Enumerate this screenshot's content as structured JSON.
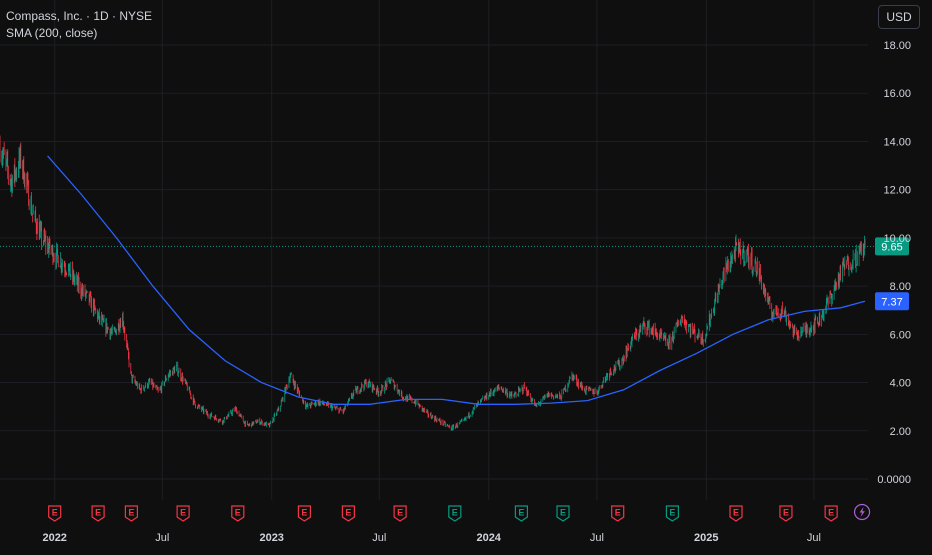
{
  "header": {
    "title": "Compass, Inc. · 1D · NYSE",
    "indicator": "SMA (200, close)",
    "currency": "USD"
  },
  "colors": {
    "background": "#0f0f0f",
    "grid": "#1d1f24",
    "up": "#089981",
    "down": "#f23645",
    "sma": "#2962ff",
    "text": "#d1d4dc",
    "flash": "#b05fd6"
  },
  "price_labels": {
    "last": "9.65",
    "sma": "7.37"
  },
  "chart_data": {
    "type": "candlestick",
    "title": "Compass, Inc. · 1D · NYSE",
    "x_range": [
      "2021-10-01",
      "2025-09-30"
    ],
    "ylim": [
      0,
      18
    ],
    "y_ticks": [
      "18.00",
      "16.00",
      "14.00",
      "12.00",
      "10.00",
      "8.00",
      "6.00",
      "4.00",
      "2.00",
      "0.0000"
    ],
    "x_ticks": [
      {
        "label": "2022",
        "date": "2022-01-01",
        "bold": true
      },
      {
        "label": "Jul",
        "date": "2022-07-01",
        "bold": false
      },
      {
        "label": "2023",
        "date": "2023-01-01",
        "bold": true
      },
      {
        "label": "Jul",
        "date": "2023-07-01",
        "bold": false
      },
      {
        "label": "2024",
        "date": "2024-01-01",
        "bold": true
      },
      {
        "label": "Jul",
        "date": "2024-07-01",
        "bold": false
      },
      {
        "label": "2025",
        "date": "2025-01-01",
        "bold": true
      },
      {
        "label": "Jul",
        "date": "2025-07-01",
        "bold": false
      }
    ],
    "grid": true,
    "last_price": 9.65,
    "sma_last": 7.37,
    "price_path": [
      [
        "2021-10-01",
        13.8
      ],
      [
        "2021-10-20",
        12.3
      ],
      [
        "2021-11-05",
        13.3
      ],
      [
        "2021-11-25",
        11.0
      ],
      [
        "2021-12-10",
        10.0
      ],
      [
        "2022-01-01",
        9.3
      ],
      [
        "2022-01-20",
        8.8
      ],
      [
        "2022-02-10",
        8.0
      ],
      [
        "2022-03-01",
        7.4
      ],
      [
        "2022-03-20",
        6.5
      ],
      [
        "2022-04-10",
        6.0
      ],
      [
        "2022-04-25",
        6.7
      ],
      [
        "2022-05-10",
        4.2
      ],
      [
        "2022-05-25",
        3.7
      ],
      [
        "2022-06-10",
        4.0
      ],
      [
        "2022-06-25",
        3.6
      ],
      [
        "2022-07-10",
        4.3
      ],
      [
        "2022-07-25",
        4.6
      ],
      [
        "2022-08-10",
        3.9
      ],
      [
        "2022-08-25",
        3.1
      ],
      [
        "2022-09-15",
        2.7
      ],
      [
        "2022-10-10",
        2.4
      ],
      [
        "2022-11-01",
        2.9
      ],
      [
        "2022-11-20",
        2.2
      ],
      [
        "2022-12-10",
        2.4
      ],
      [
        "2022-12-28",
        2.2
      ],
      [
        "2023-01-15",
        3.0
      ],
      [
        "2023-02-01",
        4.3
      ],
      [
        "2023-02-15",
        3.6
      ],
      [
        "2023-03-01",
        3.0
      ],
      [
        "2023-03-20",
        3.2
      ],
      [
        "2023-04-10",
        3.0
      ],
      [
        "2023-05-01",
        2.8
      ],
      [
        "2023-05-20",
        3.6
      ],
      [
        "2023-06-10",
        4.0
      ],
      [
        "2023-07-01",
        3.6
      ],
      [
        "2023-07-20",
        4.1
      ],
      [
        "2023-08-10",
        3.4
      ],
      [
        "2023-08-30",
        3.2
      ],
      [
        "2023-09-20",
        2.7
      ],
      [
        "2023-10-10",
        2.4
      ],
      [
        "2023-10-30",
        2.1
      ],
      [
        "2023-11-20",
        2.4
      ],
      [
        "2023-12-10",
        3.0
      ],
      [
        "2024-01-01",
        3.5
      ],
      [
        "2024-01-20",
        3.8
      ],
      [
        "2024-02-10",
        3.4
      ],
      [
        "2024-03-01",
        3.8
      ],
      [
        "2024-03-20",
        3.0
      ],
      [
        "2024-04-10",
        3.5
      ],
      [
        "2024-05-01",
        3.4
      ],
      [
        "2024-05-20",
        4.3
      ],
      [
        "2024-06-10",
        3.7
      ],
      [
        "2024-07-01",
        3.6
      ],
      [
        "2024-07-20",
        4.4
      ],
      [
        "2024-08-10",
        4.8
      ],
      [
        "2024-08-30",
        5.8
      ],
      [
        "2024-09-20",
        6.4
      ],
      [
        "2024-10-10",
        6.0
      ],
      [
        "2024-10-30",
        5.6
      ],
      [
        "2024-11-20",
        6.7
      ],
      [
        "2024-12-10",
        6.1
      ],
      [
        "2024-12-28",
        5.8
      ],
      [
        "2025-01-15",
        7.3
      ],
      [
        "2025-02-01",
        8.6
      ],
      [
        "2025-02-20",
        9.5
      ],
      [
        "2025-03-10",
        9.3
      ],
      [
        "2025-03-30",
        8.6
      ],
      [
        "2025-04-20",
        6.9
      ],
      [
        "2025-05-10",
        7.0
      ],
      [
        "2025-05-30",
        6.0
      ],
      [
        "2025-06-20",
        6.2
      ],
      [
        "2025-07-10",
        6.6
      ],
      [
        "2025-07-30",
        7.6
      ],
      [
        "2025-08-20",
        8.8
      ],
      [
        "2025-09-10",
        9.2
      ],
      [
        "2025-09-25",
        9.65
      ]
    ],
    "sma_path": [
      [
        "2021-12-20",
        13.4
      ],
      [
        "2022-02-15",
        11.8
      ],
      [
        "2022-04-15",
        10.0
      ],
      [
        "2022-06-15",
        8.0
      ],
      [
        "2022-08-15",
        6.2
      ],
      [
        "2022-10-15",
        4.9
      ],
      [
        "2022-12-15",
        4.0
      ],
      [
        "2023-02-15",
        3.4
      ],
      [
        "2023-04-15",
        3.1
      ],
      [
        "2023-06-15",
        3.1
      ],
      [
        "2023-08-15",
        3.3
      ],
      [
        "2023-10-15",
        3.3
      ],
      [
        "2023-12-15",
        3.1
      ],
      [
        "2024-02-15",
        3.1
      ],
      [
        "2024-04-15",
        3.15
      ],
      [
        "2024-06-15",
        3.25
      ],
      [
        "2024-08-15",
        3.7
      ],
      [
        "2024-10-15",
        4.5
      ],
      [
        "2024-12-15",
        5.2
      ],
      [
        "2025-02-15",
        6.0
      ],
      [
        "2025-04-15",
        6.6
      ],
      [
        "2025-06-15",
        6.95
      ],
      [
        "2025-08-15",
        7.1
      ],
      [
        "2025-09-25",
        7.37
      ]
    ],
    "events": [
      {
        "date": "2022-01-01",
        "type": "earnings-negative",
        "label": "E"
      },
      {
        "date": "2022-03-15",
        "type": "earnings-negative",
        "label": "E"
      },
      {
        "date": "2022-05-10",
        "type": "earnings-negative",
        "label": "E"
      },
      {
        "date": "2022-08-05",
        "type": "earnings-negative",
        "label": "E"
      },
      {
        "date": "2022-11-05",
        "type": "earnings-negative",
        "label": "E"
      },
      {
        "date": "2023-02-25",
        "type": "earnings-negative",
        "label": "E"
      },
      {
        "date": "2023-05-10",
        "type": "earnings-negative",
        "label": "E"
      },
      {
        "date": "2023-08-05",
        "type": "earnings-negative",
        "label": "E"
      },
      {
        "date": "2023-11-05",
        "type": "earnings-positive",
        "label": "E"
      },
      {
        "date": "2024-02-25",
        "type": "earnings-positive",
        "label": "E"
      },
      {
        "date": "2024-05-05",
        "type": "earnings-positive",
        "label": "E"
      },
      {
        "date": "2024-08-05",
        "type": "earnings-negative",
        "label": "E"
      },
      {
        "date": "2024-11-05",
        "type": "earnings-positive",
        "label": "E"
      },
      {
        "date": "2025-02-20",
        "type": "earnings-negative",
        "label": "E"
      },
      {
        "date": "2025-05-15",
        "type": "earnings-negative",
        "label": "E"
      },
      {
        "date": "2025-07-30",
        "type": "earnings-negative",
        "label": "E"
      },
      {
        "date": "2025-09-20",
        "type": "flash"
      }
    ]
  }
}
